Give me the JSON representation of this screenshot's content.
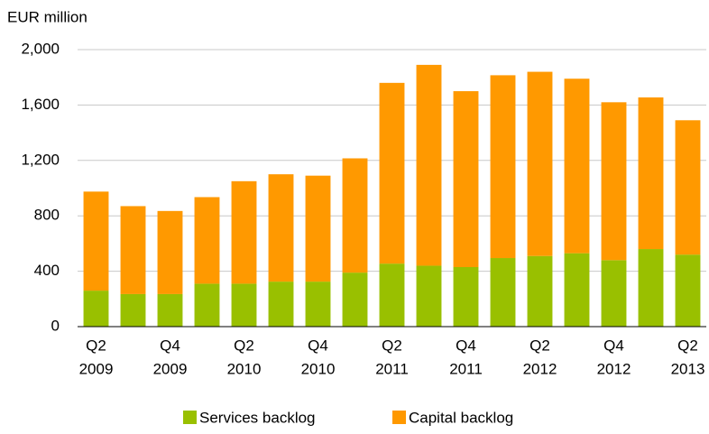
{
  "chart_data": {
    "type": "stacked_bar",
    "y_label": "EUR million",
    "categories": [
      [
        "Q2",
        "2009"
      ],
      null,
      [
        "Q4",
        "2009"
      ],
      null,
      [
        "Q2",
        "2010"
      ],
      null,
      [
        "Q4",
        "2010"
      ],
      null,
      [
        "Q2",
        "2011"
      ],
      null,
      [
        "Q4",
        "2011"
      ],
      null,
      [
        "Q2",
        "2012"
      ],
      null,
      [
        "Q4",
        "2012"
      ],
      null,
      [
        "Q2",
        "2013"
      ]
    ],
    "series": [
      {
        "name": "Services backlog",
        "color": "#99c000",
        "values": [
          260,
          235,
          235,
          310,
          310,
          325,
          325,
          390,
          455,
          440,
          430,
          495,
          510,
          530,
          480,
          560,
          520
        ]
      },
      {
        "name": "Capital backlog",
        "color": "#ff9900",
        "values": [
          715,
          635,
          600,
          625,
          740,
          775,
          765,
          825,
          1305,
          1450,
          1270,
          1320,
          1330,
          1260,
          1140,
          1095,
          970
        ]
      }
    ],
    "ylim": [
      0,
      2000
    ],
    "yticks": [
      0,
      400,
      800,
      {
        "value": 1200,
        "label": "1,200"
      },
      {
        "value": 1600,
        "label": "1,600"
      },
      {
        "value": 2000,
        "label": "2,000"
      }
    ],
    "grid": true,
    "legend": "bottom"
  }
}
